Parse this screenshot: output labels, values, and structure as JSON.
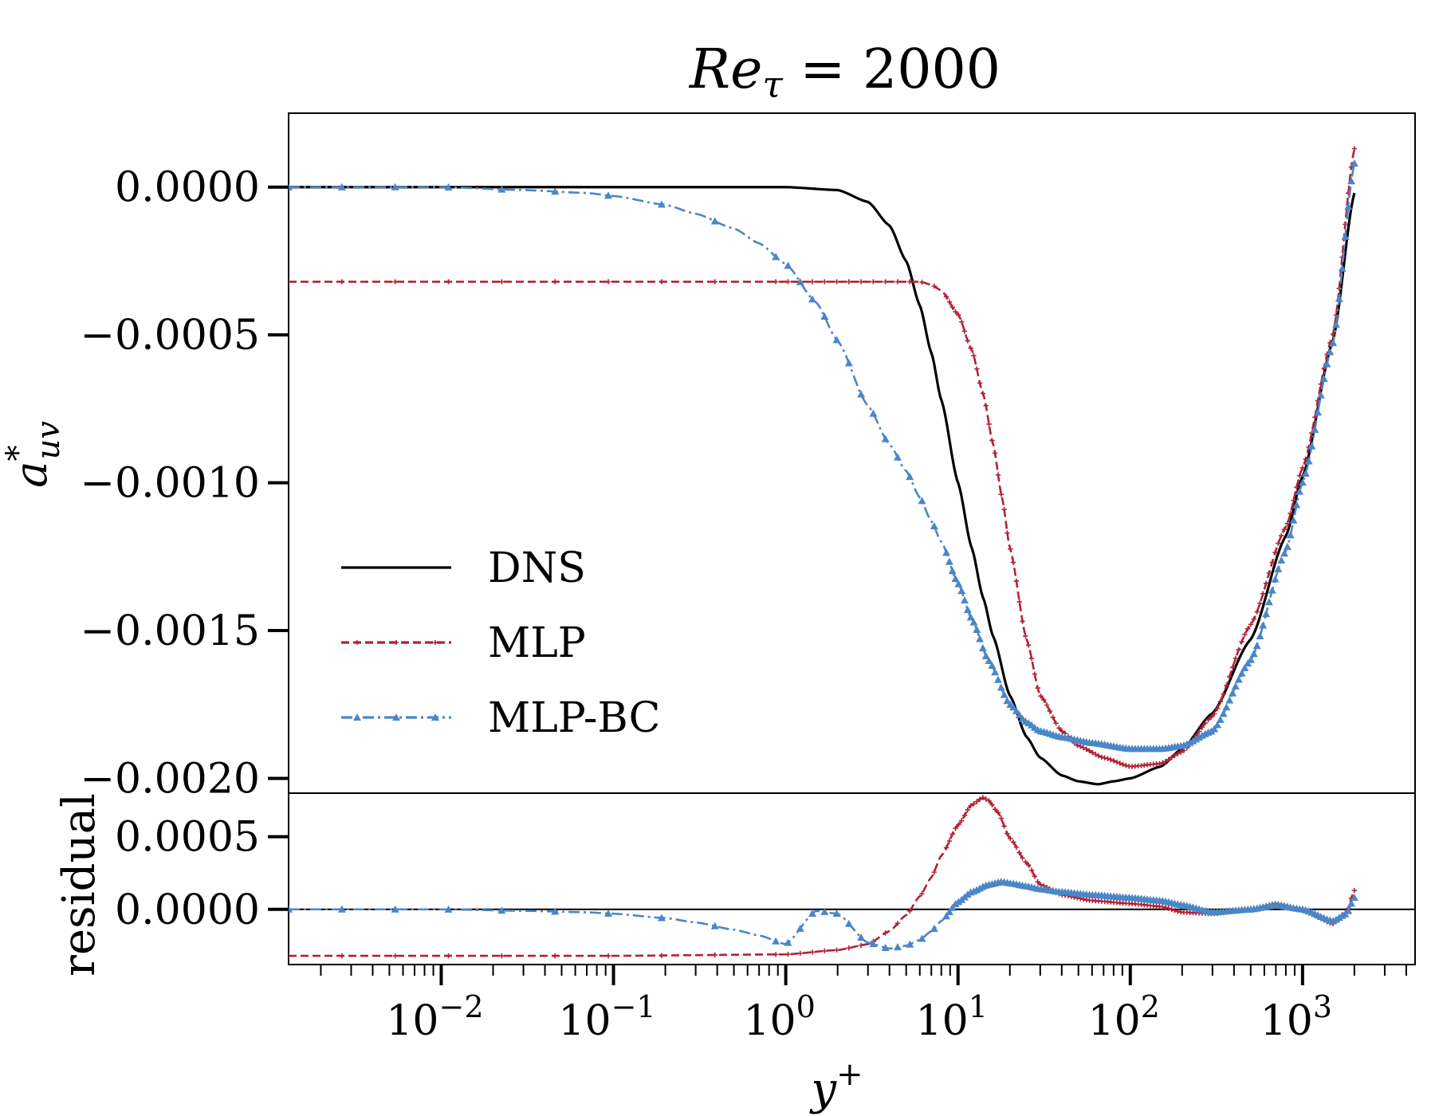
{
  "chart_data": [
    {
      "type": "line",
      "title": "Re_τ = 2000",
      "title_parts": {
        "base": "Re",
        "sub": "τ",
        "rest": " = 2000"
      },
      "ylabel": "a*_uv",
      "ylabel_parts": {
        "base": "a",
        "sup": "*",
        "sub": "uv"
      },
      "xscale": "log",
      "xlim": [
        0.0013,
        4500
      ],
      "ylim": [
        -0.00205,
        0.00025
      ],
      "yticks": [
        0.0,
        -0.0005,
        -0.001,
        -0.0015,
        -0.002
      ],
      "ytick_labels": [
        "0.0000",
        "−0.0005",
        "−0.0010",
        "−0.0015",
        "−0.0020"
      ],
      "legend_position": "lower-left",
      "series": [
        {
          "name": "DNS",
          "color": "#000000",
          "style": "solid",
          "x": [
            0.0013,
            0.01,
            0.1,
            1,
            2,
            3,
            4,
            5,
            6,
            7,
            8,
            10,
            12,
            14,
            16,
            20,
            25,
            30,
            40,
            50,
            65,
            80,
            100,
            150,
            200,
            300,
            500,
            800,
            1000,
            1500,
            2000
          ],
          "y": [
            0.0,
            0.0,
            0.0,
            0.0,
            -1e-05,
            -5e-05,
            -0.00013,
            -0.00025,
            -0.0004,
            -0.00056,
            -0.00072,
            -0.001,
            -0.00122,
            -0.00139,
            -0.00152,
            -0.00172,
            -0.00186,
            -0.00193,
            -0.00199,
            -0.00201,
            -0.00202,
            -0.00201,
            -0.002,
            -0.00196,
            -0.0019,
            -0.00178,
            -0.00153,
            -0.00118,
            -0.00098,
            -0.00052,
            -2e-05
          ]
        },
        {
          "name": "MLP",
          "color": "#b22234",
          "style": "dashed",
          "marker": "plus",
          "x": [
            0.0013,
            0.01,
            0.1,
            1,
            3,
            5,
            6,
            7,
            8,
            10,
            12,
            14,
            16,
            18,
            20,
            25,
            30,
            40,
            50,
            70,
            100,
            150,
            200,
            300,
            500,
            800,
            1000,
            1500,
            2000
          ],
          "y": [
            -0.00032,
            -0.00032,
            -0.00032,
            -0.00032,
            -0.00032,
            -0.00032,
            -0.00032,
            -0.00033,
            -0.00035,
            -0.00043,
            -0.00055,
            -0.0007,
            -0.00087,
            -0.00105,
            -0.00122,
            -0.00153,
            -0.00172,
            -0.00184,
            -0.00189,
            -0.00193,
            -0.00196,
            -0.00195,
            -0.00191,
            -0.00179,
            -0.00148,
            -0.00115,
            -0.00095,
            -0.0005,
            0.00013
          ]
        },
        {
          "name": "MLP-BC",
          "color": "#4a86c8",
          "style": "dashdot",
          "marker": "triangle",
          "x": [
            0.0013,
            0.003,
            0.01,
            0.03,
            0.07,
            0.1,
            0.2,
            0.3,
            0.5,
            0.7,
            1,
            1.5,
            2,
            3,
            4,
            5,
            6,
            7,
            8,
            10,
            12,
            15,
            20,
            25,
            30,
            40,
            60,
            100,
            150,
            200,
            300,
            500,
            800,
            1000,
            1500,
            2000
          ],
          "y": [
            0.0,
            0.0,
            0.0,
            -1e-05,
            -2e-05,
            -3e-05,
            -6e-05,
            -9e-05,
            -0.00014,
            -0.00019,
            -0.00026,
            -0.00039,
            -0.00052,
            -0.00074,
            -0.00087,
            -0.00096,
            -0.00105,
            -0.00113,
            -0.0012,
            -0.00134,
            -0.00146,
            -0.0016,
            -0.00175,
            -0.00181,
            -0.00184,
            -0.00186,
            -0.00188,
            -0.0019,
            -0.0019,
            -0.00189,
            -0.00184,
            -0.0016,
            -0.00123,
            -0.001,
            -0.00053,
            8e-05
          ]
        }
      ],
      "legend": [
        "DNS",
        "MLP",
        "MLP-BC"
      ]
    },
    {
      "type": "line",
      "xlabel": "y+",
      "xlabel_parts": {
        "base": "y",
        "sup": "+"
      },
      "ylabel": "residual",
      "xscale": "log",
      "xlim": [
        0.0013,
        4500
      ],
      "ylim": [
        -0.00038,
        0.0008
      ],
      "yticks": [
        0.0005,
        0.0
      ],
      "ytick_labels": [
        "0.0005",
        "0.0000"
      ],
      "xticks": [
        0.01,
        0.1,
        1,
        10,
        100,
        1000
      ],
      "xtick_labels": [
        {
          "base": "10",
          "exp": "−2"
        },
        {
          "base": "10",
          "exp": "−1"
        },
        {
          "base": "10",
          "exp": "0"
        },
        {
          "base": "10",
          "exp": "1"
        },
        {
          "base": "10",
          "exp": "2"
        },
        {
          "base": "10",
          "exp": "3"
        }
      ],
      "series": [
        {
          "name": "MLP",
          "color": "#b22234",
          "style": "dashed",
          "marker": "plus",
          "x": [
            0.0013,
            0.01,
            0.1,
            1,
            2,
            3,
            4,
            5,
            6,
            7,
            8,
            10,
            12,
            14,
            15,
            17,
            20,
            25,
            30,
            40,
            60,
            100,
            150,
            200,
            300,
            500,
            700,
            1000,
            1500,
            1800,
            2000
          ],
          "y": [
            -0.00032,
            -0.00032,
            -0.00032,
            -0.00031,
            -0.00028,
            -0.00024,
            -0.00015,
            -4e-05,
            9e-05,
            0.00022,
            0.00037,
            0.00058,
            0.00072,
            0.00077,
            0.00075,
            0.00067,
            0.00049,
            0.00032,
            0.00017,
            0.0001,
            6e-05,
            4e-05,
            2e-05,
            -2e-05,
            -3e-05,
            0.0,
            4e-05,
            0.0,
            -0.0001,
            -2e-05,
            0.00013
          ]
        },
        {
          "name": "MLP-BC",
          "color": "#4a86c8",
          "style": "dashdot",
          "marker": "triangle",
          "x": [
            0.0013,
            0.003,
            0.01,
            0.03,
            0.07,
            0.1,
            0.2,
            0.3,
            0.5,
            0.7,
            1,
            1.5,
            2,
            3,
            4,
            5,
            6,
            7,
            8,
            10,
            12,
            15,
            18,
            20,
            25,
            30,
            40,
            60,
            100,
            150,
            200,
            300,
            500,
            700,
            1000,
            1500,
            1800,
            2000
          ],
          "y": [
            0.0,
            0.0,
            0.0,
            -1e-05,
            -2e-05,
            -3e-05,
            -6e-05,
            -9e-05,
            -0.00014,
            -0.00018,
            -0.00024,
            -1e-05,
            -3e-05,
            -0.00023,
            -0.00027,
            -0.00025,
            -0.00021,
            -0.00015,
            -8e-05,
            5e-05,
            0.00012,
            0.00017,
            0.00019,
            0.00018,
            0.00016,
            0.00014,
            0.00012,
            0.0001,
            8e-05,
            6e-05,
            3e-05,
            -2e-05,
            0.0,
            3e-05,
            0.0,
            -8e-05,
            -3e-05,
            8e-05
          ]
        }
      ]
    }
  ]
}
